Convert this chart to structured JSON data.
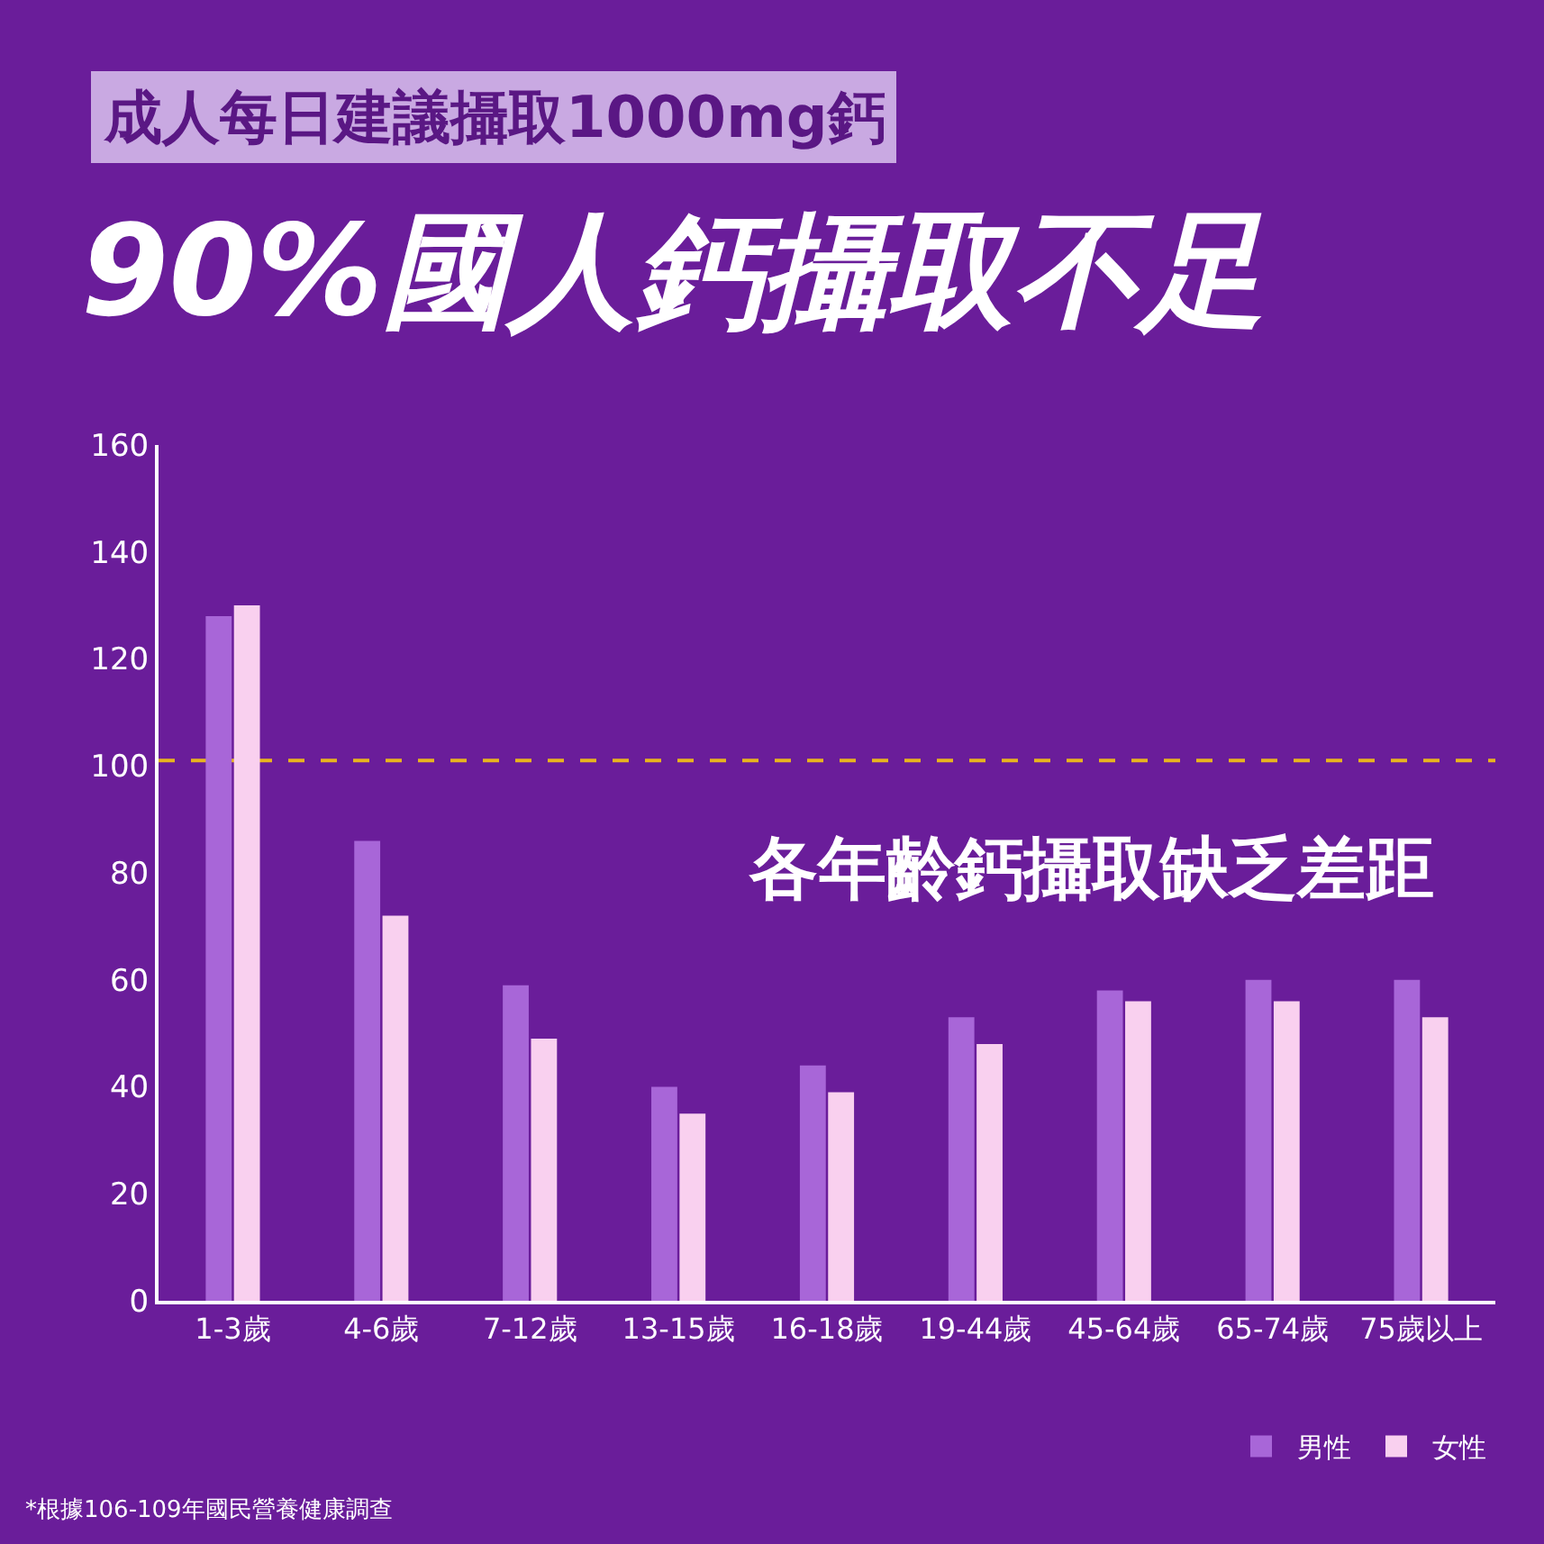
{
  "chart_data": {
    "type": "bar",
    "subtitle": "成人每日建議攝取1000mg鈣",
    "title": "90%國人鈣攝取不足",
    "categories": [
      "1-3歲",
      "4-6歲",
      "7-12歲",
      "13-15歲",
      "16-18歲",
      "19-44歲",
      "45-64歲",
      "65-74歲",
      "75歲以上"
    ],
    "series": [
      {
        "name": "男性",
        "color": "#a866d8",
        "values": [
          128,
          86,
          59,
          40,
          44,
          53,
          58,
          60,
          60
        ]
      },
      {
        "name": "女性",
        "color": "#f9d0ef",
        "values": [
          130,
          72,
          49,
          35,
          39,
          48,
          56,
          56,
          53
        ]
      }
    ],
    "ylim": [
      0,
      160
    ],
    "yticks": [
      0,
      20,
      40,
      60,
      80,
      100,
      120,
      140,
      160
    ],
    "ref_lines": [
      {
        "axis": "y",
        "value": 101,
        "color": "#e8b41e",
        "line_style": "dashed"
      }
    ],
    "annotations": [
      "各年齡鈣攝取缺乏差距",
      "*根據106-109年國民營養健康調查"
    ],
    "legend": "bottom right"
  }
}
